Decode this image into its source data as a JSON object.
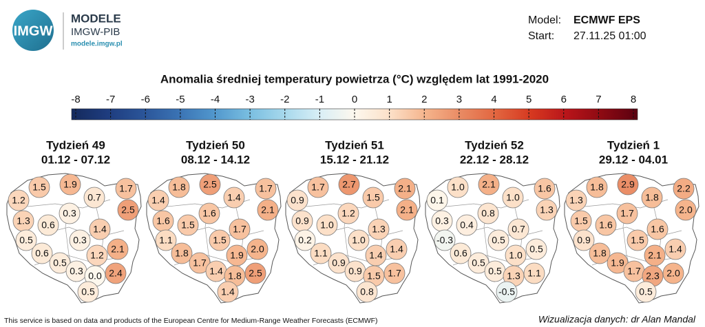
{
  "header": {
    "logo_text": "IMGW",
    "brand": "MODELE",
    "org": "IMGW-PIB",
    "url": "modele.imgw.pl",
    "model_label": "Model:",
    "model": "ECMWF EPS",
    "start_label": "Start:",
    "start": "27.11.25 01:00"
  },
  "title": "Anomalia średniej temperatury powietrza (°C) względem lat 1991-2020",
  "colorbar": {
    "lim": [
      -8,
      8
    ],
    "ticks": [
      -8,
      -7,
      -6,
      -5,
      -4,
      -3,
      -2,
      -1,
      0,
      1,
      2,
      3,
      4,
      5,
      6,
      7,
      8
    ],
    "colors": [
      "#142a5c",
      "#1e3c7e",
      "#2a5498",
      "#3a72b3",
      "#5096cc",
      "#78bde0",
      "#a6d8ec",
      "#d8eef6",
      "#fdf8ee",
      "#fce0c8",
      "#f5b48c",
      "#e98a63",
      "#e2653f",
      "#d63820",
      "#b8141a",
      "#8c0a12",
      "#5a0010"
    ]
  },
  "maps": [
    {
      "week": "Tydzień 49",
      "dates": "01.12 - 07.12",
      "values": [
        1.5,
        1.9,
        0.7,
        1.7,
        1.2,
        2.5,
        0.3,
        1.3,
        0.6,
        1.4,
        0.5,
        0.3,
        2.1,
        0.6,
        0.5,
        1.2,
        0.3,
        0,
        2.4,
        0.5
      ],
      "value_labels": [
        "1.5",
        "1.9",
        "0.7",
        "1.7",
        "1.2",
        "2.5",
        "0.3",
        "1.3",
        "0.6",
        "1.4",
        "0.5",
        "0.3",
        "2.1",
        "0.6",
        "0.5",
        "1.2",
        "0.3",
        "0.0",
        "2.4",
        "0.5"
      ]
    },
    {
      "week": "Tydzień 50",
      "dates": "08.12 - 14.12",
      "values": [
        1.8,
        2.5,
        1.4,
        1.7,
        1.4,
        2.1,
        1.6,
        1.6,
        1.5,
        1.7,
        1.1,
        1.5,
        2,
        1.8,
        1.7,
        1.9,
        1.4,
        1.8,
        2.5,
        1.4
      ],
      "value_labels": [
        "1.8",
        "2.5",
        "1.4",
        "1.7",
        "1.4",
        "2.1",
        "1.6",
        "1.6",
        "1.5",
        "1.7",
        "1.1",
        "1.5",
        "2.0",
        "1.8",
        "1.7",
        "1.9",
        "1.4",
        "1.8",
        "2.5",
        "1.4"
      ]
    },
    {
      "week": "Tydzień 51",
      "dates": "15.12 - 21.12",
      "values": [
        1.7,
        2.7,
        1.5,
        2.1,
        0.9,
        2.1,
        1.2,
        0.9,
        1,
        1.3,
        0.2,
        1,
        1.4,
        1.1,
        0.9,
        1.4,
        0.9,
        1.5,
        1.7,
        0.8
      ],
      "value_labels": [
        "1.7",
        "2.7",
        "1.5",
        "2.1",
        "0.9",
        "2.1",
        "1.2",
        "0.9",
        "1.0",
        "1.3",
        "0.2",
        "1.0",
        "1.4",
        "1.1",
        "0.9",
        "1.4",
        "0.9",
        "1.5",
        "1.7",
        "0.8"
      ]
    },
    {
      "week": "Tydzień 52",
      "dates": "22.12 - 28.12",
      "values": [
        1,
        2.1,
        1,
        1.6,
        0.1,
        1.3,
        0.8,
        0.3,
        0.4,
        0.7,
        -0.3,
        0.5,
        0.5,
        0.6,
        0.5,
        1,
        0.5,
        1.3,
        1.1,
        -0.5
      ],
      "value_labels": [
        "1.0",
        "2.1",
        "1.0",
        "1.6",
        "0.1",
        "1.3",
        "0.8",
        "0.3",
        "0.4",
        "0.7",
        "-0.3",
        "0.5",
        "0.5",
        "0.6",
        "0.5",
        "1.0",
        "0.5",
        "1.3",
        "1.1",
        "-0.5"
      ]
    },
    {
      "week": "Tydzień 1",
      "dates": "29.12 - 04.01",
      "values": [
        1.8,
        2.9,
        1.8,
        2.2,
        1.3,
        2,
        1.7,
        1.5,
        1.6,
        1.6,
        0.9,
        1.5,
        1.4,
        1.8,
        1.9,
        2.1,
        1.7,
        2.3,
        2,
        0.5
      ],
      "value_labels": [
        "1.8",
        "2.9",
        "1.8",
        "2.2",
        "1.3",
        "2.0",
        "1.7",
        "1.5",
        "1.6",
        "1.6",
        "0.9",
        "1.5",
        "1.4",
        "1.8",
        "1.9",
        "2.1",
        "1.7",
        "2.3",
        "2.0",
        "0.5"
      ]
    }
  ],
  "footer": {
    "source": "This service is based on data and products of the European Centre for Medium-Range Weather Forecasts (ECMWF)",
    "credit": "Wizualizacja danych: dr Alan Mandal"
  }
}
